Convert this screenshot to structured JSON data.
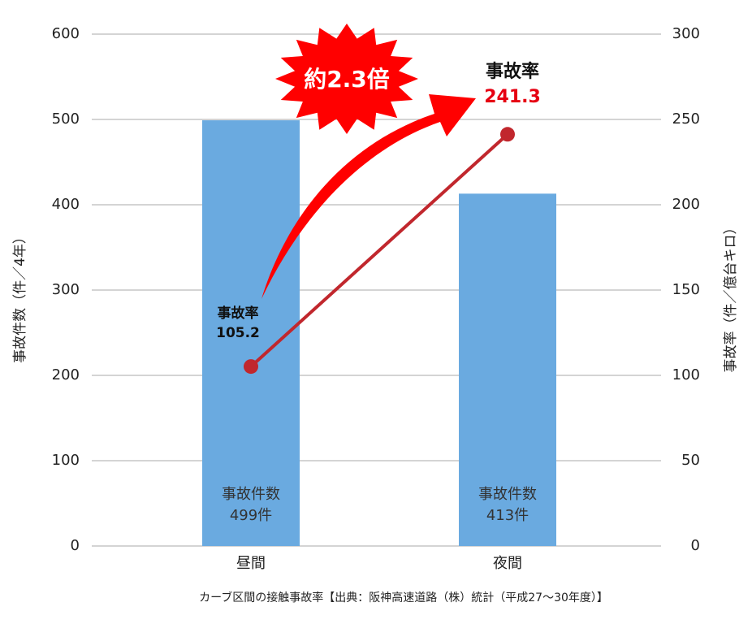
{
  "chart_data": {
    "type": "bar",
    "categories": [
      "昼間",
      "夜間"
    ],
    "series": [
      {
        "name": "事故件数",
        "type": "bar",
        "color": "#6aaae0",
        "values": [
          499,
          413
        ],
        "value_labels": [
          "499件",
          "413件"
        ]
      },
      {
        "name": "事故率",
        "type": "line",
        "color": "#c1272d",
        "axis": "y2",
        "values": [
          105.2,
          241.3
        ]
      }
    ],
    "ylim": [
      0,
      600
    ],
    "yticks": [
      0,
      100,
      200,
      300,
      400,
      500,
      600
    ],
    "y2lim": [
      0,
      300
    ],
    "y2ticks": [
      0,
      50,
      100,
      150,
      200,
      250,
      300
    ],
    "ylabel": "事故件数（件／4年）",
    "y2label": "事故率（件／億台キロ）",
    "grid": true,
    "annotation": "約2.3倍",
    "caption": "カーブ区間の接触事故率【出典：阪神高速道路（株）統計（平成27～30年度）】"
  }
}
